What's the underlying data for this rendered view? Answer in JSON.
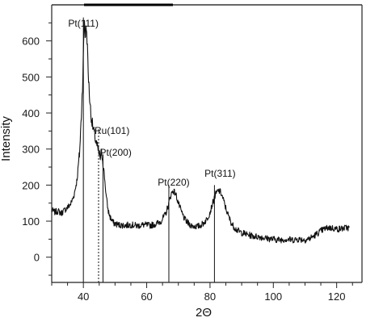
{
  "chart_data": {
    "type": "line",
    "title": "",
    "xlabel": "2Θ",
    "ylabel": "Intensity",
    "xlim": [
      30,
      128
    ],
    "ylim": [
      -70,
      700
    ],
    "x_ticks": [
      {
        "value": 40,
        "label": "40"
      },
      {
        "value": 60,
        "label": "60"
      },
      {
        "value": 80,
        "label": "80"
      },
      {
        "value": 100,
        "label": "100"
      },
      {
        "value": 120,
        "label": "120"
      }
    ],
    "y_ticks": [
      {
        "value": 0,
        "label": "0"
      },
      {
        "value": 100,
        "label": "100"
      },
      {
        "value": 200,
        "label": "200"
      },
      {
        "value": 300,
        "label": "300"
      },
      {
        "value": 400,
        "label": "400"
      },
      {
        "value": 500,
        "label": "500"
      },
      {
        "value": 600,
        "label": "600"
      }
    ],
    "grid": false,
    "series": [
      {
        "color": "#111111",
        "points": [
          [
            30,
            130
          ],
          [
            31,
            125
          ],
          [
            32,
            128
          ],
          [
            33,
            122
          ],
          [
            34,
            130
          ],
          [
            35,
            138
          ],
          [
            36,
            148
          ],
          [
            37,
            170
          ],
          [
            38,
            215
          ],
          [
            38.8,
            290
          ],
          [
            39.3,
            380
          ],
          [
            39.7,
            470
          ],
          [
            40,
            560
          ],
          [
            40.3,
            665
          ],
          [
            40.6,
            610
          ],
          [
            40.9,
            640
          ],
          [
            41.2,
            600
          ],
          [
            41.5,
            520
          ],
          [
            41.9,
            450
          ],
          [
            42.4,
            395
          ],
          [
            43,
            360
          ],
          [
            43.5,
            340
          ],
          [
            44,
            320
          ],
          [
            44.5,
            300
          ],
          [
            45,
            285
          ],
          [
            45.4,
            275
          ],
          [
            45.8,
            290
          ],
          [
            46.2,
            265
          ],
          [
            46.7,
            220
          ],
          [
            47.2,
            170
          ],
          [
            47.8,
            130
          ],
          [
            48.5,
            110
          ],
          [
            49.5,
            95
          ],
          [
            51,
            90
          ],
          [
            53,
            88
          ],
          [
            55,
            90
          ],
          [
            57,
            87
          ],
          [
            59,
            90
          ],
          [
            61,
            88
          ],
          [
            63,
            92
          ],
          [
            64.5,
            100
          ],
          [
            66,
            120
          ],
          [
            67,
            150
          ],
          [
            67.7,
            175
          ],
          [
            68.4,
            185
          ],
          [
            69.2,
            175
          ],
          [
            70,
            150
          ],
          [
            71,
            125
          ],
          [
            72,
            105
          ],
          [
            73,
            95
          ],
          [
            74,
            88
          ],
          [
            75,
            86
          ],
          [
            76,
            85
          ],
          [
            77,
            88
          ],
          [
            78,
            95
          ],
          [
            79,
            105
          ],
          [
            80,
            125
          ],
          [
            81,
            155
          ],
          [
            81.8,
            175
          ],
          [
            82.6,
            185
          ],
          [
            83.4,
            180
          ],
          [
            84.2,
            160
          ],
          [
            85,
            135
          ],
          [
            86,
            110
          ],
          [
            87,
            90
          ],
          [
            88.5,
            75
          ],
          [
            90,
            68
          ],
          [
            92,
            62
          ],
          [
            94,
            58
          ],
          [
            96,
            56
          ],
          [
            98,
            52
          ],
          [
            100,
            50
          ],
          [
            102,
            48
          ],
          [
            104,
            50
          ],
          [
            106,
            48
          ],
          [
            108,
            50
          ],
          [
            110,
            48
          ],
          [
            111.5,
            52
          ],
          [
            113,
            60
          ],
          [
            114.5,
            70
          ],
          [
            116,
            78
          ],
          [
            117.5,
            82
          ],
          [
            119,
            80
          ],
          [
            120.5,
            78
          ],
          [
            122,
            80
          ],
          [
            123.5,
            82
          ],
          [
            124,
            80
          ]
        ]
      }
    ],
    "reflections": [
      {
        "label": "Pt(111)",
        "x": 40,
        "height": 665,
        "style": "solid"
      },
      {
        "label": "Ru(101)",
        "x": 44.8,
        "height": 355,
        "style": "dotted"
      },
      {
        "label": "Pt(200)",
        "x": 46.2,
        "height": 285,
        "style": "solid"
      },
      {
        "label": "Pt(220)",
        "x": 67,
        "height": 200,
        "style": "solid"
      },
      {
        "label": "Pt(311)",
        "x": 81.4,
        "height": 200,
        "style": "solid"
      }
    ]
  }
}
